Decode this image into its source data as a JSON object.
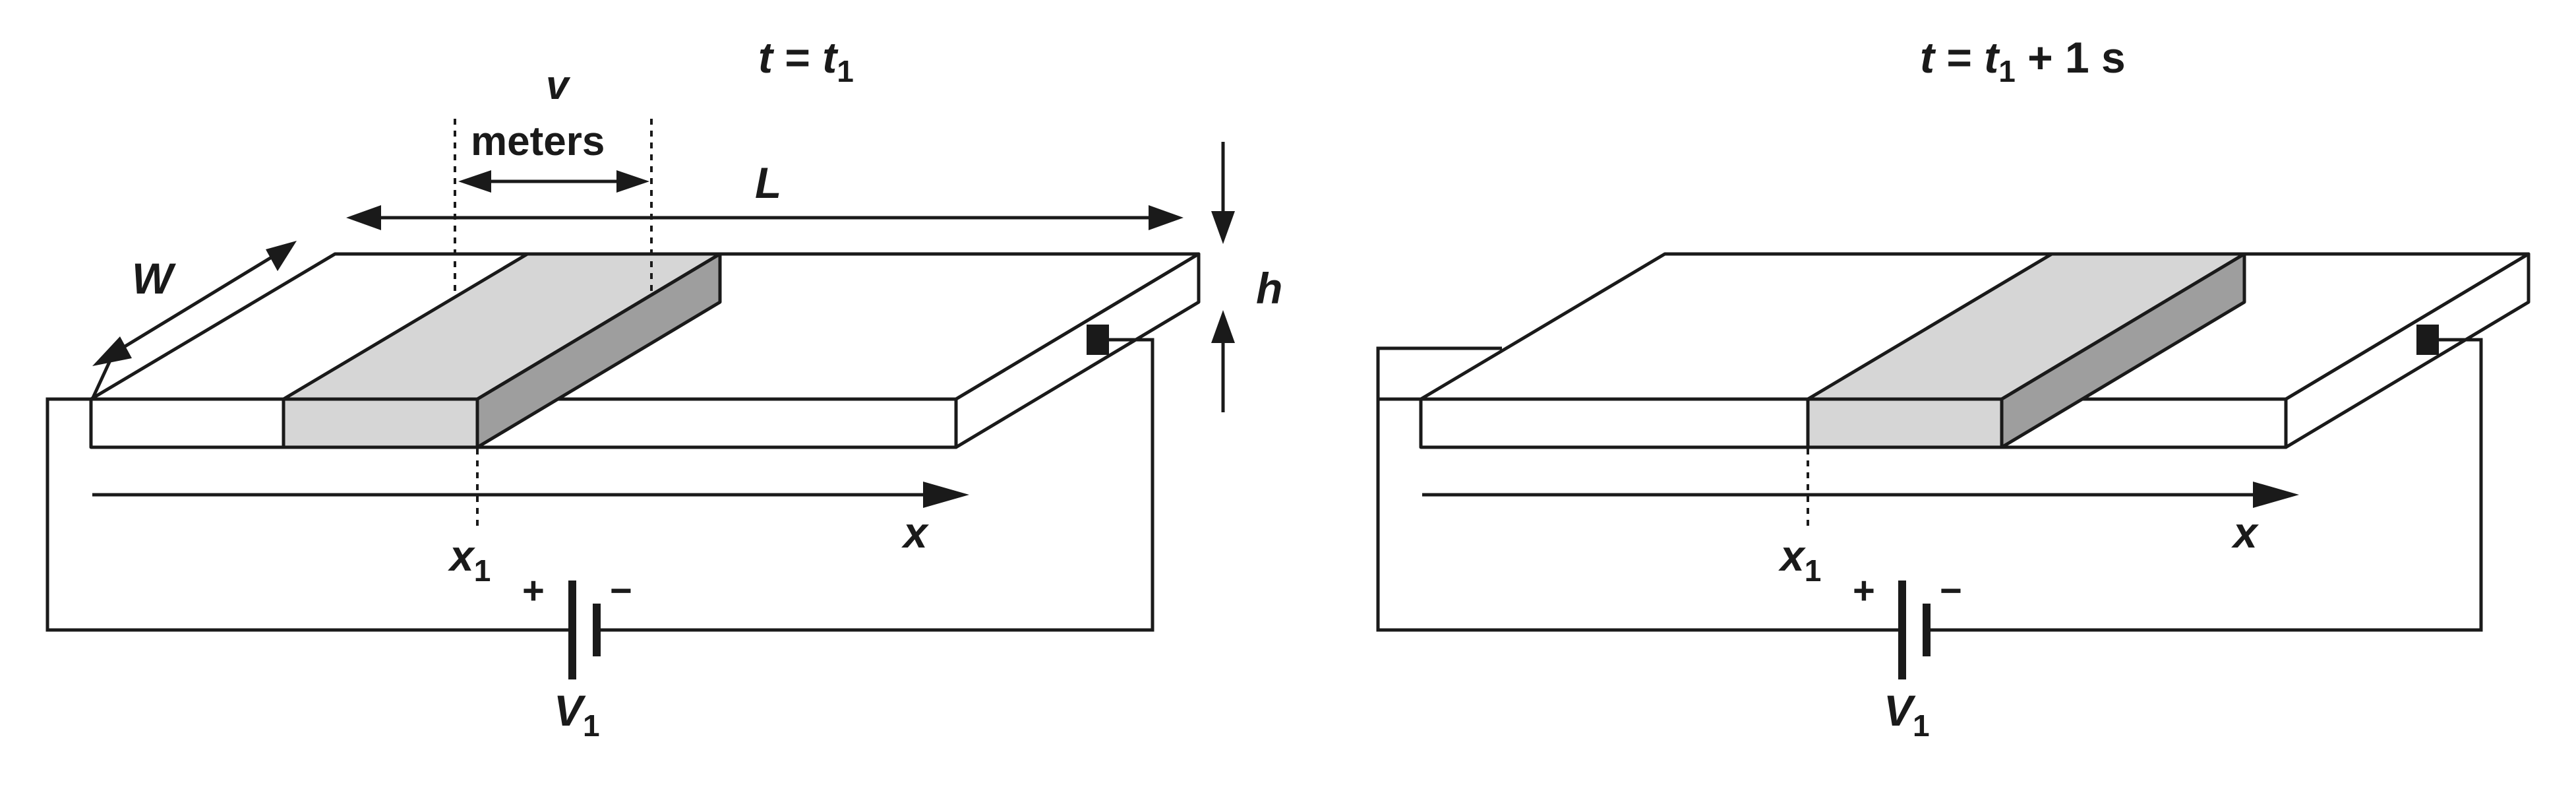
{
  "colors": {
    "ink": "#1a1a1a",
    "slab": "#ffffff",
    "charge_top": "#d6d6d6",
    "charge_front": "#d6d6d6",
    "charge_side": "#9e9e9e"
  },
  "left": {
    "time": {
      "var": "t",
      "eq": " = ",
      "var2": "t",
      "sub": "1"
    },
    "v_label": "v",
    "meters_label": "meters",
    "L_label": "L",
    "W_label": "W",
    "h_label": "h",
    "x_label": "x",
    "x1": {
      "var": "x",
      "sub": "1"
    },
    "plus": "+",
    "minus": "−",
    "V1": {
      "var": "V",
      "sub": "1"
    }
  },
  "right": {
    "time": {
      "var": "t",
      "eq": " = ",
      "var2": "t",
      "sub": "1",
      "rest": " + 1 s"
    },
    "x_label": "x",
    "x1": {
      "var": "x",
      "sub": "1"
    },
    "plus": "+",
    "minus": "−",
    "V1": {
      "var": "V",
      "sub": "1"
    }
  }
}
